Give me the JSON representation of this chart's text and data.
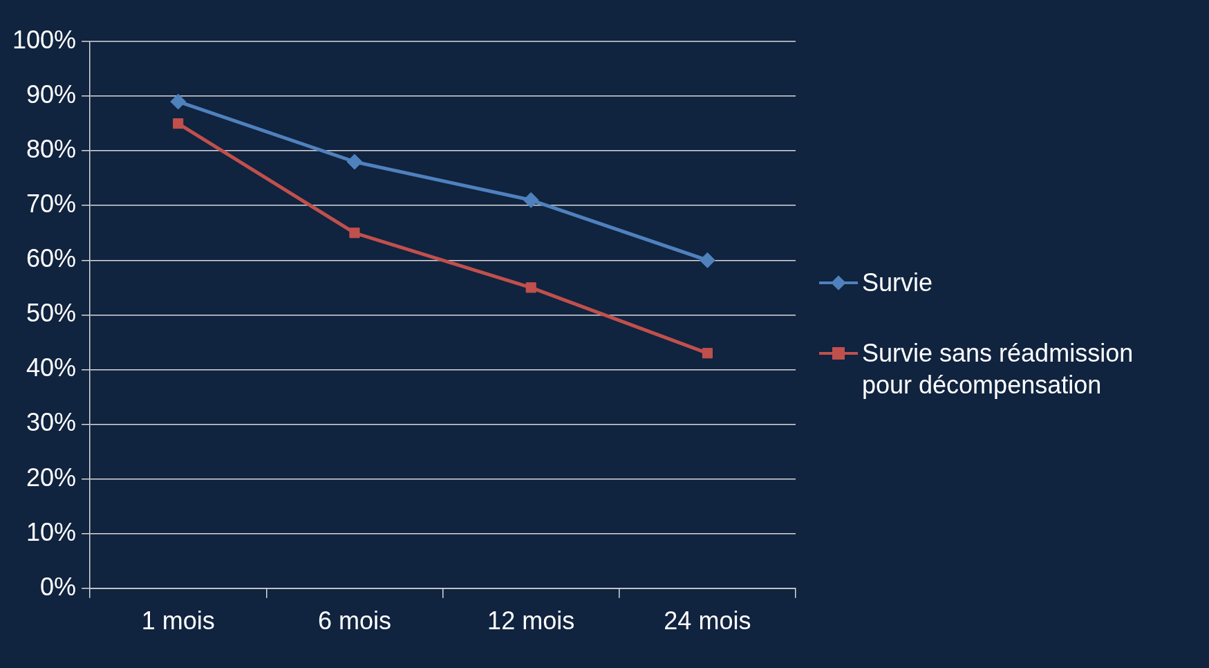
{
  "chart_data": {
    "type": "line",
    "categories": [
      "1 mois",
      "6 mois",
      "12 mois",
      "24 mois"
    ],
    "series": [
      {
        "name": "Survie",
        "color": "#4f81bd",
        "marker": "diamond",
        "values": [
          89,
          78,
          71,
          60
        ]
      },
      {
        "name": "Survie sans réadmission pour décompensation",
        "color": "#c0504d",
        "marker": "square",
        "values": [
          85,
          65,
          55,
          43
        ]
      }
    ],
    "ylim": [
      0,
      100
    ],
    "yticks": [
      {
        "value": 0,
        "label": "0%"
      },
      {
        "value": 10,
        "label": "10%"
      },
      {
        "value": 20,
        "label": "20%"
      },
      {
        "value": 30,
        "label": "30%"
      },
      {
        "value": 40,
        "label": "40%"
      },
      {
        "value": 50,
        "label": "50%"
      },
      {
        "value": 60,
        "label": "60%"
      },
      {
        "value": 70,
        "label": "70%"
      },
      {
        "value": 80,
        "label": "80%"
      },
      {
        "value": 90,
        "label": "90%"
      },
      {
        "value": 100,
        "label": "100%"
      }
    ],
    "grid": "y",
    "legend": "right",
    "line_style": "solid"
  }
}
